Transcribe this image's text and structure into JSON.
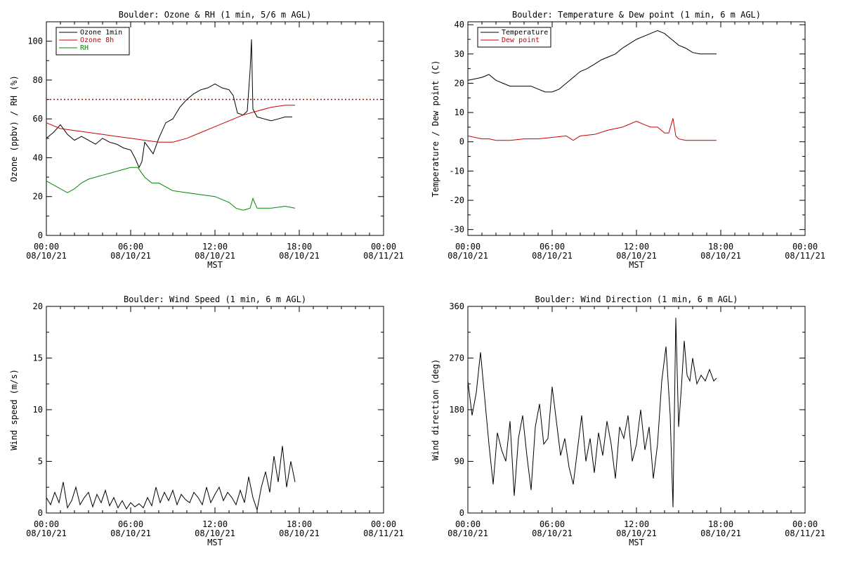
{
  "chart_data": [
    {
      "type": "line",
      "title": "Boulder: Ozone & RH (1 min, 5/6 m AGL)",
      "xlabel": "MST",
      "ylabel": "Ozone (ppbv) / RH (%)",
      "xlim": [
        0,
        24
      ],
      "ylim": [
        0,
        110
      ],
      "yticks": [
        0,
        20,
        40,
        60,
        80,
        100
      ],
      "xticks": [
        0,
        6,
        12,
        18,
        24
      ],
      "xtick_labels": [
        [
          "00:00",
          "08/10/21"
        ],
        [
          "06:00",
          "08/10/21"
        ],
        [
          "12:00",
          "08/10/21"
        ],
        [
          "18:00",
          "08/10/21"
        ],
        [
          "00:00",
          "08/11/21"
        ]
      ],
      "legend": "top-left",
      "reference_line": {
        "y": 70,
        "color": "#cc0000",
        "style": "dotted"
      },
      "series": [
        {
          "name": "Ozone 1min",
          "color": "#000000",
          "x": [
            0,
            0.5,
            1,
            1.5,
            2,
            2.5,
            3,
            3.5,
            4,
            4.5,
            5,
            5.5,
            6,
            6.3,
            6.6,
            6.8,
            7,
            7.3,
            7.6,
            8,
            8.5,
            9,
            9.5,
            10,
            10.5,
            11,
            11.5,
            12,
            12.5,
            13,
            13.3,
            13.6,
            14,
            14.3,
            14.5,
            14.6,
            14.7,
            15,
            15.5,
            16,
            16.5,
            17,
            17.5
          ],
          "y": [
            50,
            53,
            57,
            52,
            49,
            51,
            49,
            47,
            50,
            48,
            47,
            45,
            44,
            40,
            35,
            38,
            48,
            45,
            42,
            50,
            58,
            60,
            66,
            70,
            73,
            75,
            76,
            78,
            76,
            75,
            72,
            63,
            62,
            64,
            85,
            101,
            65,
            61,
            60,
            59,
            60,
            61,
            61
          ]
        },
        {
          "name": "Ozone 8h",
          "color": "#cc0000",
          "x": [
            0,
            1,
            2,
            3,
            4,
            5,
            6,
            7,
            8,
            9,
            10,
            11,
            12,
            13,
            14,
            15,
            16,
            17,
            17.7
          ],
          "y": [
            58,
            55,
            54,
            53,
            52,
            51,
            50,
            49,
            48,
            48,
            50,
            53,
            56,
            59,
            62,
            64,
            66,
            67,
            67
          ]
        },
        {
          "name": "RH",
          "color": "#008800",
          "x": [
            0,
            0.5,
            1,
            1.5,
            2,
            2.5,
            3,
            3.5,
            4,
            4.5,
            5,
            5.5,
            6,
            6.5,
            7,
            7.5,
            8,
            8.5,
            9,
            10,
            11,
            12,
            13,
            13.5,
            14,
            14.5,
            14.7,
            15,
            16,
            17,
            17.7
          ],
          "y": [
            28,
            26,
            24,
            22,
            24,
            27,
            29,
            30,
            31,
            32,
            33,
            34,
            35,
            35,
            30,
            27,
            27,
            25,
            23,
            22,
            21,
            20,
            17,
            14,
            13,
            14,
            19,
            14,
            14,
            15,
            14
          ]
        }
      ]
    },
    {
      "type": "line",
      "title": "Boulder: Temperature & Dew point (1 min, 6 m AGL)",
      "xlabel": "MST",
      "ylabel": "Temperature / Dew point (C)",
      "xlim": [
        0,
        24
      ],
      "ylim": [
        -32,
        41
      ],
      "yticks": [
        -30,
        -20,
        -10,
        0,
        10,
        20,
        30,
        40
      ],
      "xticks": [
        0,
        6,
        12,
        18,
        24
      ],
      "xtick_labels": [
        [
          "00:00",
          "08/10/21"
        ],
        [
          "06:00",
          "08/10/21"
        ],
        [
          "12:00",
          "08/10/21"
        ],
        [
          "18:00",
          "08/10/21"
        ],
        [
          "00:00",
          "08/11/21"
        ]
      ],
      "legend": "top-left",
      "series": [
        {
          "name": "Temperature",
          "color": "#000000",
          "x": [
            0,
            0.5,
            1,
            1.5,
            2,
            2.5,
            3,
            3.5,
            4,
            4.5,
            5,
            5.5,
            6,
            6.5,
            7,
            7.5,
            8,
            8.5,
            9,
            9.5,
            10,
            10.5,
            11,
            11.5,
            12,
            12.5,
            13,
            13.5,
            14,
            14.5,
            15,
            15.5,
            16,
            16.5,
            17,
            17.7
          ],
          "y": [
            21,
            21.5,
            22,
            23,
            21,
            20,
            19,
            19,
            19,
            19,
            18,
            17,
            17,
            18,
            20,
            22,
            24,
            25,
            26.5,
            28,
            29,
            30,
            32,
            33.5,
            35,
            36,
            37,
            38,
            37,
            35,
            33,
            32,
            30.5,
            30,
            30,
            30
          ]
        },
        {
          "name": "Dew point",
          "color": "#cc0000",
          "x": [
            0,
            0.5,
            1,
            1.5,
            2,
            2.5,
            3,
            4,
            5,
            6,
            7,
            7.5,
            8,
            9,
            10,
            11,
            12,
            12.5,
            13,
            13.5,
            14,
            14.3,
            14.6,
            14.8,
            15,
            15.5,
            16,
            16.5,
            17,
            17.7
          ],
          "y": [
            2,
            1.5,
            1,
            1,
            0.5,
            0.5,
            0.5,
            1,
            1,
            1.5,
            2,
            0.5,
            2,
            2.5,
            4,
            5,
            7,
            6,
            5,
            5,
            3,
            3,
            8,
            2,
            1,
            0.5,
            0.5,
            0.5,
            0.5,
            0.5
          ]
        }
      ]
    },
    {
      "type": "line",
      "title": "Boulder: Wind Speed (1 min, 6 m AGL)",
      "xlabel": "MST",
      "ylabel": "Wind speed (m/s)",
      "xlim": [
        0,
        24
      ],
      "ylim": [
        0,
        20
      ],
      "yticks": [
        0,
        5,
        10,
        15,
        20
      ],
      "xticks": [
        0,
        6,
        12,
        18,
        24
      ],
      "xtick_labels": [
        [
          "00:00",
          "08/10/21"
        ],
        [
          "06:00",
          "08/10/21"
        ],
        [
          "12:00",
          "08/10/21"
        ],
        [
          "18:00",
          "08/10/21"
        ],
        [
          "00:00",
          "08/11/21"
        ]
      ],
      "series": [
        {
          "color": "#000000",
          "x": [
            0,
            0.3,
            0.6,
            0.9,
            1.2,
            1.5,
            1.8,
            2.1,
            2.4,
            2.7,
            3,
            3.3,
            3.6,
            3.9,
            4.2,
            4.5,
            4.8,
            5.1,
            5.4,
            5.7,
            6,
            6.3,
            6.6,
            6.9,
            7.2,
            7.5,
            7.8,
            8.1,
            8.4,
            8.7,
            9,
            9.3,
            9.6,
            9.9,
            10.2,
            10.5,
            10.8,
            11.1,
            11.4,
            11.7,
            12,
            12.3,
            12.6,
            12.9,
            13.2,
            13.5,
            13.8,
            14.1,
            14.4,
            14.7,
            15,
            15.3,
            15.6,
            15.9,
            16.2,
            16.5,
            16.8,
            17.1,
            17.4,
            17.7
          ],
          "y": [
            1.5,
            0.8,
            2,
            1,
            3,
            0.5,
            1.2,
            2.5,
            0.8,
            1.5,
            2,
            0.6,
            1.8,
            1,
            2.2,
            0.7,
            1.5,
            0.5,
            1.2,
            0.4,
            1,
            0.6,
            0.9,
            0.5,
            1.5,
            0.7,
            2.5,
            1,
            2,
            1.2,
            2.2,
            0.8,
            1.8,
            1.3,
            1,
            2,
            1.5,
            0.8,
            2.5,
            1,
            1.8,
            2.5,
            1.2,
            2,
            1.5,
            0.8,
            2.2,
            1,
            3.5,
            1.5,
            0.3,
            2.5,
            4,
            2,
            5.5,
            3,
            6.5,
            2.5,
            5,
            3
          ]
        }
      ]
    },
    {
      "type": "line",
      "title": "Boulder: Wind Direction (1 min, 6 m AGL)",
      "xlabel": "MST",
      "ylabel": "Wind direction (deg)",
      "xlim": [
        0,
        24
      ],
      "ylim": [
        0,
        360
      ],
      "yticks": [
        0,
        90,
        180,
        270,
        360
      ],
      "xticks": [
        0,
        6,
        12,
        18,
        24
      ],
      "xtick_labels": [
        [
          "00:00",
          "08/10/21"
        ],
        [
          "06:00",
          "08/10/21"
        ],
        [
          "12:00",
          "08/10/21"
        ],
        [
          "18:00",
          "08/10/21"
        ],
        [
          "00:00",
          "08/11/21"
        ]
      ],
      "series": [
        {
          "color": "#000000",
          "x": [
            0,
            0.3,
            0.6,
            0.9,
            1.2,
            1.5,
            1.8,
            2.1,
            2.4,
            2.7,
            3,
            3.3,
            3.6,
            3.9,
            4.2,
            4.5,
            4.8,
            5.1,
            5.4,
            5.7,
            6,
            6.3,
            6.6,
            6.9,
            7.2,
            7.5,
            7.8,
            8.1,
            8.4,
            8.7,
            9,
            9.3,
            9.6,
            9.9,
            10.2,
            10.5,
            10.8,
            11.1,
            11.4,
            11.7,
            12,
            12.3,
            12.6,
            12.9,
            13.2,
            13.5,
            13.8,
            14.1,
            14.4,
            14.6,
            14.8,
            15,
            15.2,
            15.4,
            15.6,
            15.8,
            16,
            16.3,
            16.6,
            16.9,
            17.2,
            17.5,
            17.7
          ],
          "y": [
            230,
            170,
            210,
            280,
            200,
            120,
            50,
            140,
            110,
            90,
            160,
            30,
            130,
            170,
            100,
            40,
            150,
            190,
            120,
            130,
            220,
            160,
            100,
            130,
            80,
            50,
            110,
            170,
            90,
            130,
            70,
            140,
            100,
            160,
            120,
            60,
            150,
            130,
            170,
            90,
            120,
            180,
            110,
            150,
            60,
            120,
            230,
            290,
            170,
            10,
            340,
            150,
            220,
            300,
            240,
            230,
            270,
            225,
            240,
            230,
            250,
            230,
            235
          ]
        }
      ]
    }
  ]
}
